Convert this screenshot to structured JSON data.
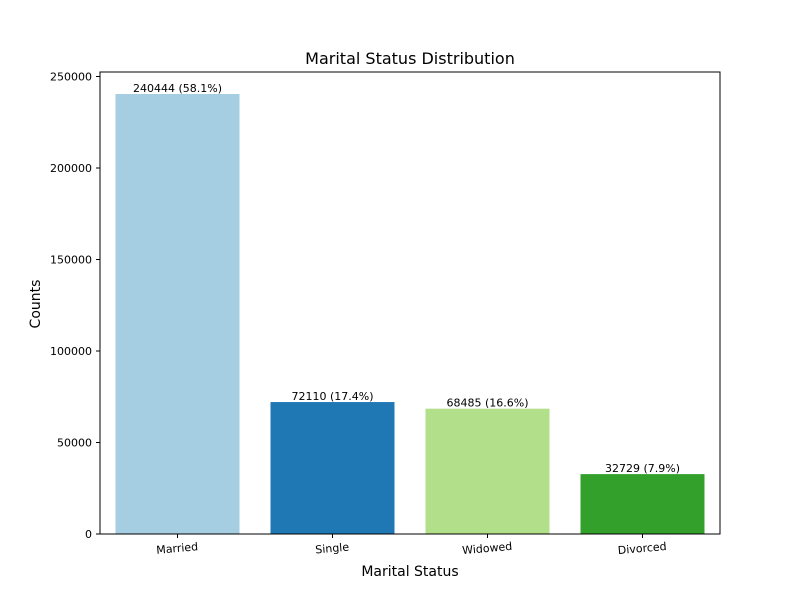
{
  "chart_data": {
    "type": "bar",
    "title": "Marital Status Distribution",
    "xlabel": "Marital Status",
    "ylabel": "Counts",
    "categories": [
      "Married",
      "Single",
      "Widowed",
      "Divorced"
    ],
    "values": [
      240444,
      72110,
      68485,
      32729
    ],
    "bar_labels": [
      "240444 (58.1%)",
      "72110 (17.4%)",
      "68485 (16.6%)",
      "32729 (7.9%)"
    ],
    "colors": [
      "#a6cee3",
      "#1f78b4",
      "#b2df8a",
      "#33a02c"
    ],
    "ylim": [
      0,
      252466
    ],
    "yticks": [
      0,
      50000,
      100000,
      150000,
      200000,
      250000
    ],
    "ytick_labels": [
      "0",
      "50000",
      "100000",
      "150000",
      "200000",
      "250000"
    ],
    "grid": false,
    "legend": "none"
  }
}
